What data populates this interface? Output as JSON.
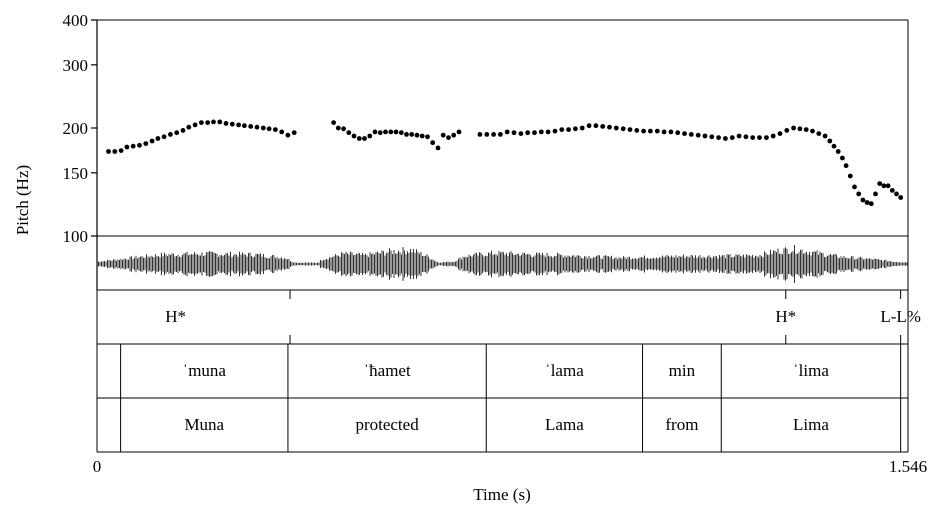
{
  "chart_data": {
    "type": "scatter",
    "title": "",
    "ylabel": "Pitch (Hz)",
    "xlabel": "Time (s)",
    "y_scale": "log",
    "ylim": [
      100,
      400
    ],
    "y_ticks": [
      "400",
      "300",
      "200",
      "150",
      "100"
    ],
    "xlim": [
      0,
      1.546
    ],
    "x_tick_labels": [
      "0",
      "1.546"
    ],
    "grid": false,
    "pitch_points": [
      {
        "x": 0.022,
        "y": 172
      },
      {
        "x": 0.034,
        "y": 172
      },
      {
        "x": 0.046,
        "y": 173
      },
      {
        "x": 0.057,
        "y": 177
      },
      {
        "x": 0.069,
        "y": 178
      },
      {
        "x": 0.081,
        "y": 179
      },
      {
        "x": 0.093,
        "y": 181
      },
      {
        "x": 0.105,
        "y": 184
      },
      {
        "x": 0.116,
        "y": 187
      },
      {
        "x": 0.128,
        "y": 189
      },
      {
        "x": 0.14,
        "y": 192
      },
      {
        "x": 0.152,
        "y": 194
      },
      {
        "x": 0.164,
        "y": 197
      },
      {
        "x": 0.175,
        "y": 201
      },
      {
        "x": 0.187,
        "y": 204
      },
      {
        "x": 0.199,
        "y": 207
      },
      {
        "x": 0.211,
        "y": 207
      },
      {
        "x": 0.222,
        "y": 208
      },
      {
        "x": 0.234,
        "y": 208
      },
      {
        "x": 0.246,
        "y": 206
      },
      {
        "x": 0.258,
        "y": 205
      },
      {
        "x": 0.27,
        "y": 204
      },
      {
        "x": 0.281,
        "y": 203
      },
      {
        "x": 0.293,
        "y": 202
      },
      {
        "x": 0.305,
        "y": 201
      },
      {
        "x": 0.317,
        "y": 200
      },
      {
        "x": 0.328,
        "y": 199
      },
      {
        "x": 0.34,
        "y": 198
      },
      {
        "x": 0.352,
        "y": 195
      },
      {
        "x": 0.364,
        "y": 191
      },
      {
        "x": 0.376,
        "y": 194
      },
      {
        "x": 0.451,
        "y": 207
      },
      {
        "x": 0.46,
        "y": 200
      },
      {
        "x": 0.47,
        "y": 199
      },
      {
        "x": 0.48,
        "y": 194
      },
      {
        "x": 0.49,
        "y": 190
      },
      {
        "x": 0.5,
        "y": 187
      },
      {
        "x": 0.51,
        "y": 187
      },
      {
        "x": 0.52,
        "y": 190
      },
      {
        "x": 0.53,
        "y": 195
      },
      {
        "x": 0.54,
        "y": 194
      },
      {
        "x": 0.55,
        "y": 195
      },
      {
        "x": 0.56,
        "y": 195
      },
      {
        "x": 0.57,
        "y": 195
      },
      {
        "x": 0.58,
        "y": 194
      },
      {
        "x": 0.59,
        "y": 192
      },
      {
        "x": 0.6,
        "y": 192
      },
      {
        "x": 0.61,
        "y": 191
      },
      {
        "x": 0.62,
        "y": 190
      },
      {
        "x": 0.63,
        "y": 189
      },
      {
        "x": 0.64,
        "y": 182
      },
      {
        "x": 0.65,
        "y": 176
      },
      {
        "x": 0.66,
        "y": 191
      },
      {
        "x": 0.67,
        "y": 188
      },
      {
        "x": 0.68,
        "y": 191
      },
      {
        "x": 0.69,
        "y": 195
      },
      {
        "x": 0.73,
        "y": 192
      },
      {
        "x": 0.743,
        "y": 192
      },
      {
        "x": 0.756,
        "y": 192
      },
      {
        "x": 0.769,
        "y": 192
      },
      {
        "x": 0.782,
        "y": 195
      },
      {
        "x": 0.795,
        "y": 194
      },
      {
        "x": 0.808,
        "y": 193
      },
      {
        "x": 0.821,
        "y": 194
      },
      {
        "x": 0.834,
        "y": 194
      },
      {
        "x": 0.847,
        "y": 195
      },
      {
        "x": 0.86,
        "y": 195
      },
      {
        "x": 0.873,
        "y": 196
      },
      {
        "x": 0.886,
        "y": 198
      },
      {
        "x": 0.899,
        "y": 198
      },
      {
        "x": 0.912,
        "y": 199
      },
      {
        "x": 0.925,
        "y": 200
      },
      {
        "x": 0.938,
        "y": 203
      },
      {
        "x": 0.951,
        "y": 203
      },
      {
        "x": 0.964,
        "y": 202
      },
      {
        "x": 0.977,
        "y": 201
      },
      {
        "x": 0.99,
        "y": 200
      },
      {
        "x": 1.003,
        "y": 199
      },
      {
        "x": 1.016,
        "y": 198
      },
      {
        "x": 1.029,
        "y": 197
      },
      {
        "x": 1.042,
        "y": 196
      },
      {
        "x": 1.055,
        "y": 196
      },
      {
        "x": 1.068,
        "y": 196
      },
      {
        "x": 1.081,
        "y": 195
      },
      {
        "x": 1.094,
        "y": 195
      },
      {
        "x": 1.107,
        "y": 194
      },
      {
        "x": 1.12,
        "y": 193
      },
      {
        "x": 1.133,
        "y": 192
      },
      {
        "x": 1.146,
        "y": 191
      },
      {
        "x": 1.159,
        "y": 190
      },
      {
        "x": 1.172,
        "y": 189
      },
      {
        "x": 1.185,
        "y": 188
      },
      {
        "x": 1.198,
        "y": 187
      },
      {
        "x": 1.211,
        "y": 188
      },
      {
        "x": 1.224,
        "y": 190
      },
      {
        "x": 1.237,
        "y": 189
      },
      {
        "x": 1.25,
        "y": 188
      },
      {
        "x": 1.263,
        "y": 188
      },
      {
        "x": 1.276,
        "y": 188
      },
      {
        "x": 1.289,
        "y": 190
      },
      {
        "x": 1.302,
        "y": 193
      },
      {
        "x": 1.315,
        "y": 197
      },
      {
        "x": 1.328,
        "y": 200
      },
      {
        "x": 1.34,
        "y": 199
      },
      {
        "x": 1.352,
        "y": 198
      },
      {
        "x": 1.364,
        "y": 196
      },
      {
        "x": 1.376,
        "y": 193
      },
      {
        "x": 1.388,
        "y": 190
      },
      {
        "x": 1.397,
        "y": 184
      },
      {
        "x": 1.405,
        "y": 178
      },
      {
        "x": 1.413,
        "y": 172
      },
      {
        "x": 1.421,
        "y": 165
      },
      {
        "x": 1.428,
        "y": 157
      },
      {
        "x": 1.436,
        "y": 147
      },
      {
        "x": 1.444,
        "y": 137
      },
      {
        "x": 1.452,
        "y": 131
      },
      {
        "x": 1.46,
        "y": 126
      },
      {
        "x": 1.468,
        "y": 124
      },
      {
        "x": 1.476,
        "y": 123
      },
      {
        "x": 1.484,
        "y": 131
      },
      {
        "x": 1.492,
        "y": 140
      },
      {
        "x": 1.5,
        "y": 138
      },
      {
        "x": 1.508,
        "y": 138
      },
      {
        "x": 1.516,
        "y": 134
      },
      {
        "x": 1.524,
        "y": 131
      },
      {
        "x": 1.532,
        "y": 128
      }
    ],
    "tiers": [
      {
        "name": "tones",
        "boundaries": [
          0.368,
          1.313,
          1.532
        ],
        "labels": [
          {
            "x": 0.15,
            "text": "H*"
          },
          {
            "x": 1.313,
            "text": "H*"
          },
          {
            "x": 1.532,
            "text": "L-L%"
          }
        ]
      },
      {
        "name": "ipa",
        "boundaries": [
          0.045,
          0.364,
          0.742,
          1.04,
          1.19,
          1.532
        ],
        "intervals": [
          "",
          "ˈmuna",
          "ˈħamet",
          "ˈlama",
          "min",
          "ˈlima",
          ""
        ]
      },
      {
        "name": "gloss",
        "boundaries": [
          0.045,
          0.364,
          0.742,
          1.04,
          1.19,
          1.532
        ],
        "intervals": [
          "",
          "Muna",
          "protected",
          "Lama",
          "from",
          "Lima",
          ""
        ]
      }
    ]
  }
}
